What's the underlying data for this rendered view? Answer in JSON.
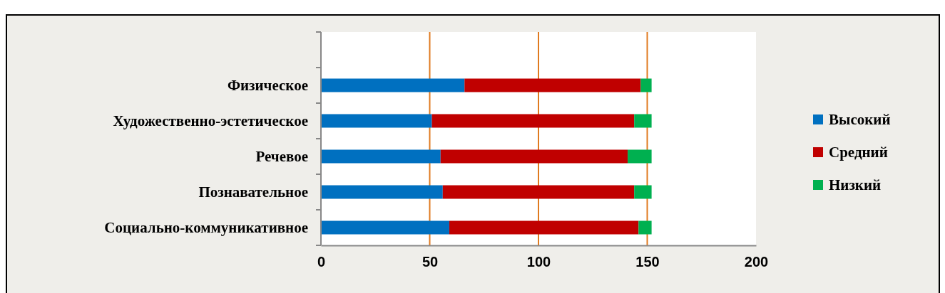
{
  "chart_data": {
    "type": "bar",
    "orientation": "horizontal",
    "stacked": true,
    "categories": [
      null,
      "Физическое",
      "Художественно-эстетическое",
      "Речевое",
      "Познавательное",
      "Социально-коммуникативное"
    ],
    "series": [
      {
        "name": "Высокий",
        "color": "#0070c0",
        "values": [
          null,
          66,
          51,
          55,
          56,
          59
        ]
      },
      {
        "name": "Средний",
        "color": "#c00000",
        "values": [
          null,
          81,
          93,
          86,
          88,
          87
        ]
      },
      {
        "name": "Низкий",
        "color": "#00b050",
        "values": [
          null,
          5,
          8,
          11,
          8,
          6
        ]
      }
    ],
    "xlim": [
      0,
      200
    ],
    "xticks": [
      0,
      50,
      100,
      150,
      200
    ],
    "grid": "x",
    "legend": "right"
  }
}
